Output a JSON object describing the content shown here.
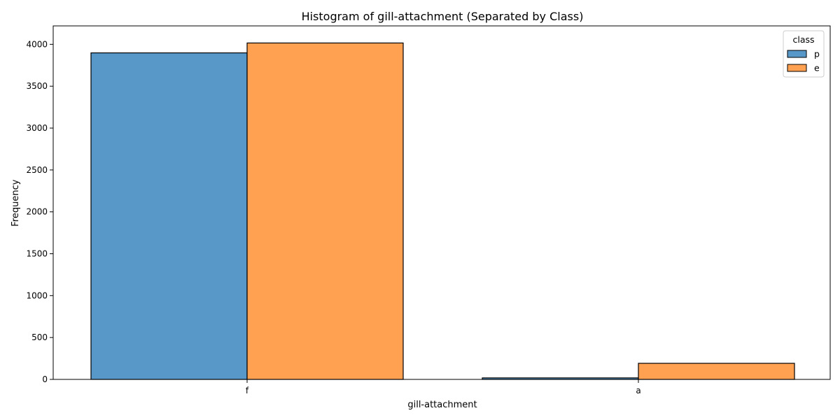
{
  "chart_data": {
    "type": "bar",
    "title": "Histogram of gill-attachment (Separated by Class)",
    "xlabel": "gill-attachment",
    "ylabel": "Frequency",
    "categories": [
      "f",
      "a"
    ],
    "series": [
      {
        "name": "p",
        "values": [
          3898,
          18
        ],
        "color": "#3a86c0"
      },
      {
        "name": "e",
        "values": [
          4016,
          192
        ],
        "color": "#ff9033"
      }
    ],
    "ylim": [
      0,
      4220
    ],
    "yticks": [
      "0",
      "500",
      "1000",
      "1500",
      "2000",
      "2500",
      "3000",
      "3500",
      "4000"
    ],
    "ytick_values": [
      0,
      500,
      1000,
      1500,
      2000,
      2500,
      3000,
      3500,
      4000
    ],
    "legend": {
      "title": "class",
      "placement": "top-right"
    },
    "grid": false,
    "bar_opacity": 0.85,
    "edge_color": "#000000"
  }
}
